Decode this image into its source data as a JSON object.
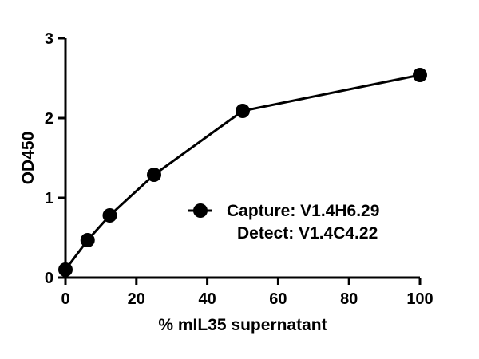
{
  "chart_data": {
    "type": "line",
    "title": "",
    "xlabel": "% mIL35 supernatant",
    "ylabel": "OD450",
    "xlim": [
      0,
      100
    ],
    "ylim": [
      0,
      3
    ],
    "x_ticks": [
      "0",
      "20",
      "40",
      "60",
      "80",
      "100"
    ],
    "y_ticks": [
      "0",
      "1",
      "2",
      "3"
    ],
    "grid": false,
    "legend_position": "center-right",
    "series": [
      {
        "name": "Capture: V1.4H6.29",
        "name_line2": "Detect: V1.4C4.22",
        "color": "#000000",
        "marker": "circle",
        "x": [
          0,
          6.25,
          12.5,
          25,
          50,
          100
        ],
        "y": [
          0.1,
          0.47,
          0.78,
          1.29,
          2.09,
          2.54
        ]
      }
    ]
  }
}
